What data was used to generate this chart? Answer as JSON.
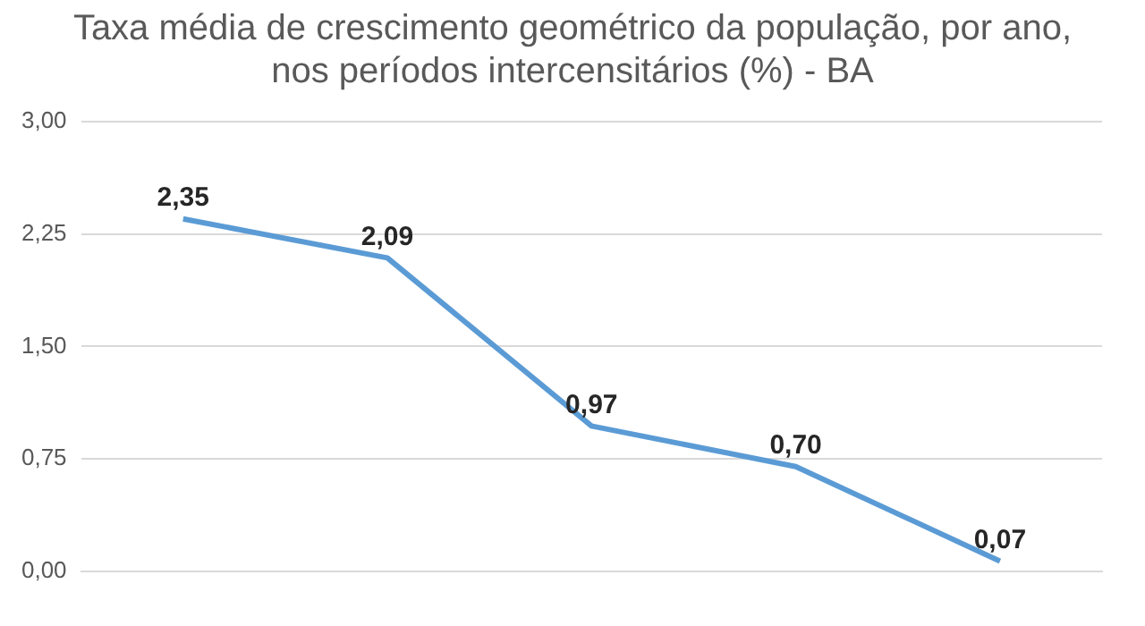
{
  "chart_data": {
    "type": "line",
    "title": "Taxa média de crescimento geométrico da população, por ano, nos períodos intercensitários (%) - BA",
    "categories": [
      null,
      null,
      null,
      null,
      null
    ],
    "series": [
      {
        "color": "#5b9bd5",
        "values": [
          2.35,
          2.09,
          0.97,
          0.7,
          0.07
        ],
        "value_labels": [
          "2,35",
          "2,09",
          "0,97",
          "0,70",
          "0,07"
        ]
      }
    ],
    "ylim": [
      0,
      3
    ],
    "yticks": [
      {
        "value": 0,
        "label": "0,00"
      },
      {
        "value": 0.75,
        "label": "0,75"
      },
      {
        "value": 1.5,
        "label": "1,50"
      },
      {
        "value": 2.25,
        "label": "2,25"
      },
      {
        "value": 3,
        "label": "3,00"
      }
    ],
    "grid": "y",
    "marker": "none",
    "line_style": "solid",
    "legend": false
  }
}
